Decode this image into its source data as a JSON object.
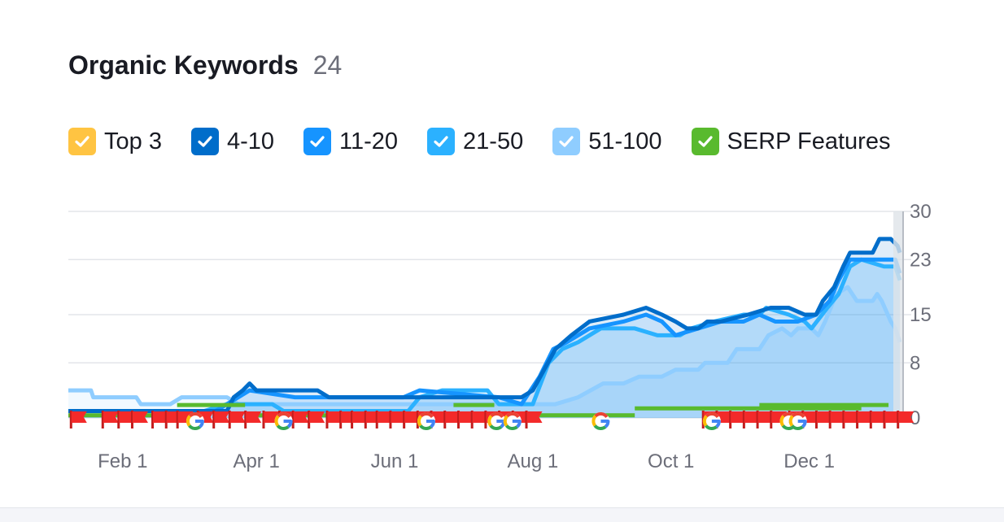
{
  "colors": {
    "top3": "#ffc442",
    "r4_10": "#006dca",
    "r11_20": "#1694ff",
    "r21_50": "#2bb1ff",
    "r51_100": "#8fcdff",
    "serp": "#59ba2e",
    "flag": "#f32a2a"
  },
  "header": {
    "title": "Organic Keywords",
    "count": "24"
  },
  "legend": [
    {
      "label": "Top 3",
      "color": "#ffc442",
      "checked": true
    },
    {
      "label": "4-10",
      "color": "#006dca",
      "checked": true
    },
    {
      "label": "11-20",
      "color": "#1694ff",
      "checked": true
    },
    {
      "label": "21-50",
      "color": "#2bb1ff",
      "checked": true
    },
    {
      "label": "51-100",
      "color": "#8fcdff",
      "checked": true
    },
    {
      "label": "SERP Features",
      "color": "#59ba2e",
      "checked": true
    }
  ],
  "chart_data": {
    "type": "area",
    "xlim": [
      0,
      367
    ],
    "ylim": [
      0,
      30
    ],
    "y_ticks": [
      0,
      8,
      15,
      23,
      30
    ],
    "x_ticks": [
      {
        "label": "Feb 1",
        "x": 24
      },
      {
        "label": "Apr 1",
        "x": 83
      },
      {
        "label": "Jun 1",
        "x": 144
      },
      {
        "label": "Aug 1",
        "x": 205
      },
      {
        "label": "Oct 1",
        "x": 266
      },
      {
        "label": "Dec 1",
        "x": 327
      }
    ],
    "grid": true,
    "series": [
      {
        "key": "r51_100",
        "points": [
          [
            0,
            4
          ],
          [
            10,
            4
          ],
          [
            11,
            3
          ],
          [
            30,
            3
          ],
          [
            32,
            2
          ],
          [
            45,
            2
          ],
          [
            50,
            3
          ],
          [
            70,
            3
          ],
          [
            75,
            2
          ],
          [
            195,
            2
          ],
          [
            215,
            2
          ],
          [
            225,
            3
          ],
          [
            236,
            5
          ],
          [
            245,
            5
          ],
          [
            252,
            6
          ],
          [
            262,
            6
          ],
          [
            268,
            7
          ],
          [
            278,
            7
          ],
          [
            281,
            8
          ],
          [
            291,
            8
          ],
          [
            295,
            10
          ],
          [
            305,
            10
          ],
          [
            309,
            12
          ],
          [
            315,
            13
          ],
          [
            319,
            12
          ],
          [
            322,
            13
          ],
          [
            328,
            13
          ],
          [
            331,
            12
          ],
          [
            334,
            14
          ],
          [
            339,
            18
          ],
          [
            344,
            19
          ],
          [
            348,
            17
          ],
          [
            355,
            17
          ],
          [
            357,
            18
          ],
          [
            359,
            17
          ],
          [
            363,
            14
          ],
          [
            365,
            13
          ],
          [
            367,
            11
          ]
        ]
      },
      {
        "key": "r21_50",
        "points": [
          [
            0,
            1
          ],
          [
            60,
            1
          ],
          [
            70,
            2
          ],
          [
            90,
            2
          ],
          [
            95,
            1
          ],
          [
            150,
            1
          ],
          [
            155,
            3
          ],
          [
            165,
            4
          ],
          [
            185,
            4
          ],
          [
            190,
            2
          ],
          [
            205,
            2
          ],
          [
            212,
            8
          ],
          [
            218,
            10
          ],
          [
            225,
            11
          ],
          [
            235,
            13
          ],
          [
            250,
            13
          ],
          [
            260,
            12
          ],
          [
            270,
            12
          ],
          [
            275,
            13
          ],
          [
            285,
            14
          ],
          [
            298,
            15
          ],
          [
            305,
            15
          ],
          [
            308,
            16
          ],
          [
            318,
            15
          ],
          [
            325,
            14
          ],
          [
            328,
            13
          ],
          [
            335,
            16
          ],
          [
            340,
            18
          ],
          [
            345,
            22
          ],
          [
            350,
            23
          ],
          [
            360,
            22
          ],
          [
            365,
            22
          ],
          [
            367,
            20
          ]
        ]
      },
      {
        "key": "r11_20",
        "points": [
          [
            0,
            1
          ],
          [
            65,
            1
          ],
          [
            70,
            2
          ],
          [
            75,
            3
          ],
          [
            80,
            4
          ],
          [
            100,
            3
          ],
          [
            140,
            3
          ],
          [
            148,
            3
          ],
          [
            155,
            4
          ],
          [
            190,
            3
          ],
          [
            200,
            2
          ],
          [
            208,
            6
          ],
          [
            214,
            10
          ],
          [
            220,
            11
          ],
          [
            230,
            13
          ],
          [
            245,
            14
          ],
          [
            255,
            15
          ],
          [
            262,
            14
          ],
          [
            268,
            12
          ],
          [
            278,
            13
          ],
          [
            288,
            14
          ],
          [
            298,
            14
          ],
          [
            305,
            15
          ],
          [
            312,
            14
          ],
          [
            322,
            14
          ],
          [
            330,
            15
          ],
          [
            336,
            17
          ],
          [
            340,
            20
          ],
          [
            345,
            23
          ],
          [
            355,
            23
          ],
          [
            365,
            23
          ],
          [
            367,
            21
          ]
        ]
      },
      {
        "key": "r4_10",
        "points": [
          [
            0,
            1
          ],
          [
            70,
            1
          ],
          [
            73,
            3
          ],
          [
            77,
            4
          ],
          [
            80,
            5
          ],
          [
            83,
            4
          ],
          [
            110,
            4
          ],
          [
            115,
            3
          ],
          [
            200,
            3
          ],
          [
            205,
            4
          ],
          [
            210,
            7
          ],
          [
            215,
            10
          ],
          [
            222,
            12
          ],
          [
            230,
            14
          ],
          [
            245,
            15
          ],
          [
            255,
            16
          ],
          [
            262,
            15
          ],
          [
            268,
            14
          ],
          [
            273,
            13
          ],
          [
            278,
            13
          ],
          [
            282,
            14
          ],
          [
            288,
            14
          ],
          [
            300,
            15
          ],
          [
            310,
            16
          ],
          [
            318,
            16
          ],
          [
            325,
            15
          ],
          [
            330,
            15
          ],
          [
            333,
            17
          ],
          [
            338,
            19
          ],
          [
            342,
            22
          ],
          [
            345,
            24
          ],
          [
            355,
            24
          ],
          [
            358,
            26
          ],
          [
            363,
            26
          ],
          [
            366,
            25
          ],
          [
            367,
            24
          ]
        ]
      }
    ],
    "serp_segments": [
      [
        0,
        48,
        0.5
      ],
      [
        48,
        78,
        2
      ],
      [
        78,
        170,
        0.5
      ],
      [
        170,
        188,
        2
      ],
      [
        188,
        250,
        0.5
      ],
      [
        250,
        350,
        1.5
      ],
      [
        305,
        362,
        2
      ]
    ],
    "serp_color_x_end": 367,
    "flags": [
      1,
      15,
      22,
      28,
      37,
      43,
      48,
      57,
      64,
      71,
      78,
      86,
      93,
      99,
      106,
      114,
      120,
      125,
      131,
      136,
      142,
      148,
      154,
      160,
      166,
      172,
      178,
      184,
      190,
      196,
      202,
      280,
      286,
      292,
      298,
      304,
      310,
      318,
      324,
      330,
      336,
      342,
      348,
      354,
      360,
      366
    ],
    "google_icons": [
      56,
      95,
      158,
      189,
      196,
      235,
      284,
      318,
      322
    ]
  }
}
